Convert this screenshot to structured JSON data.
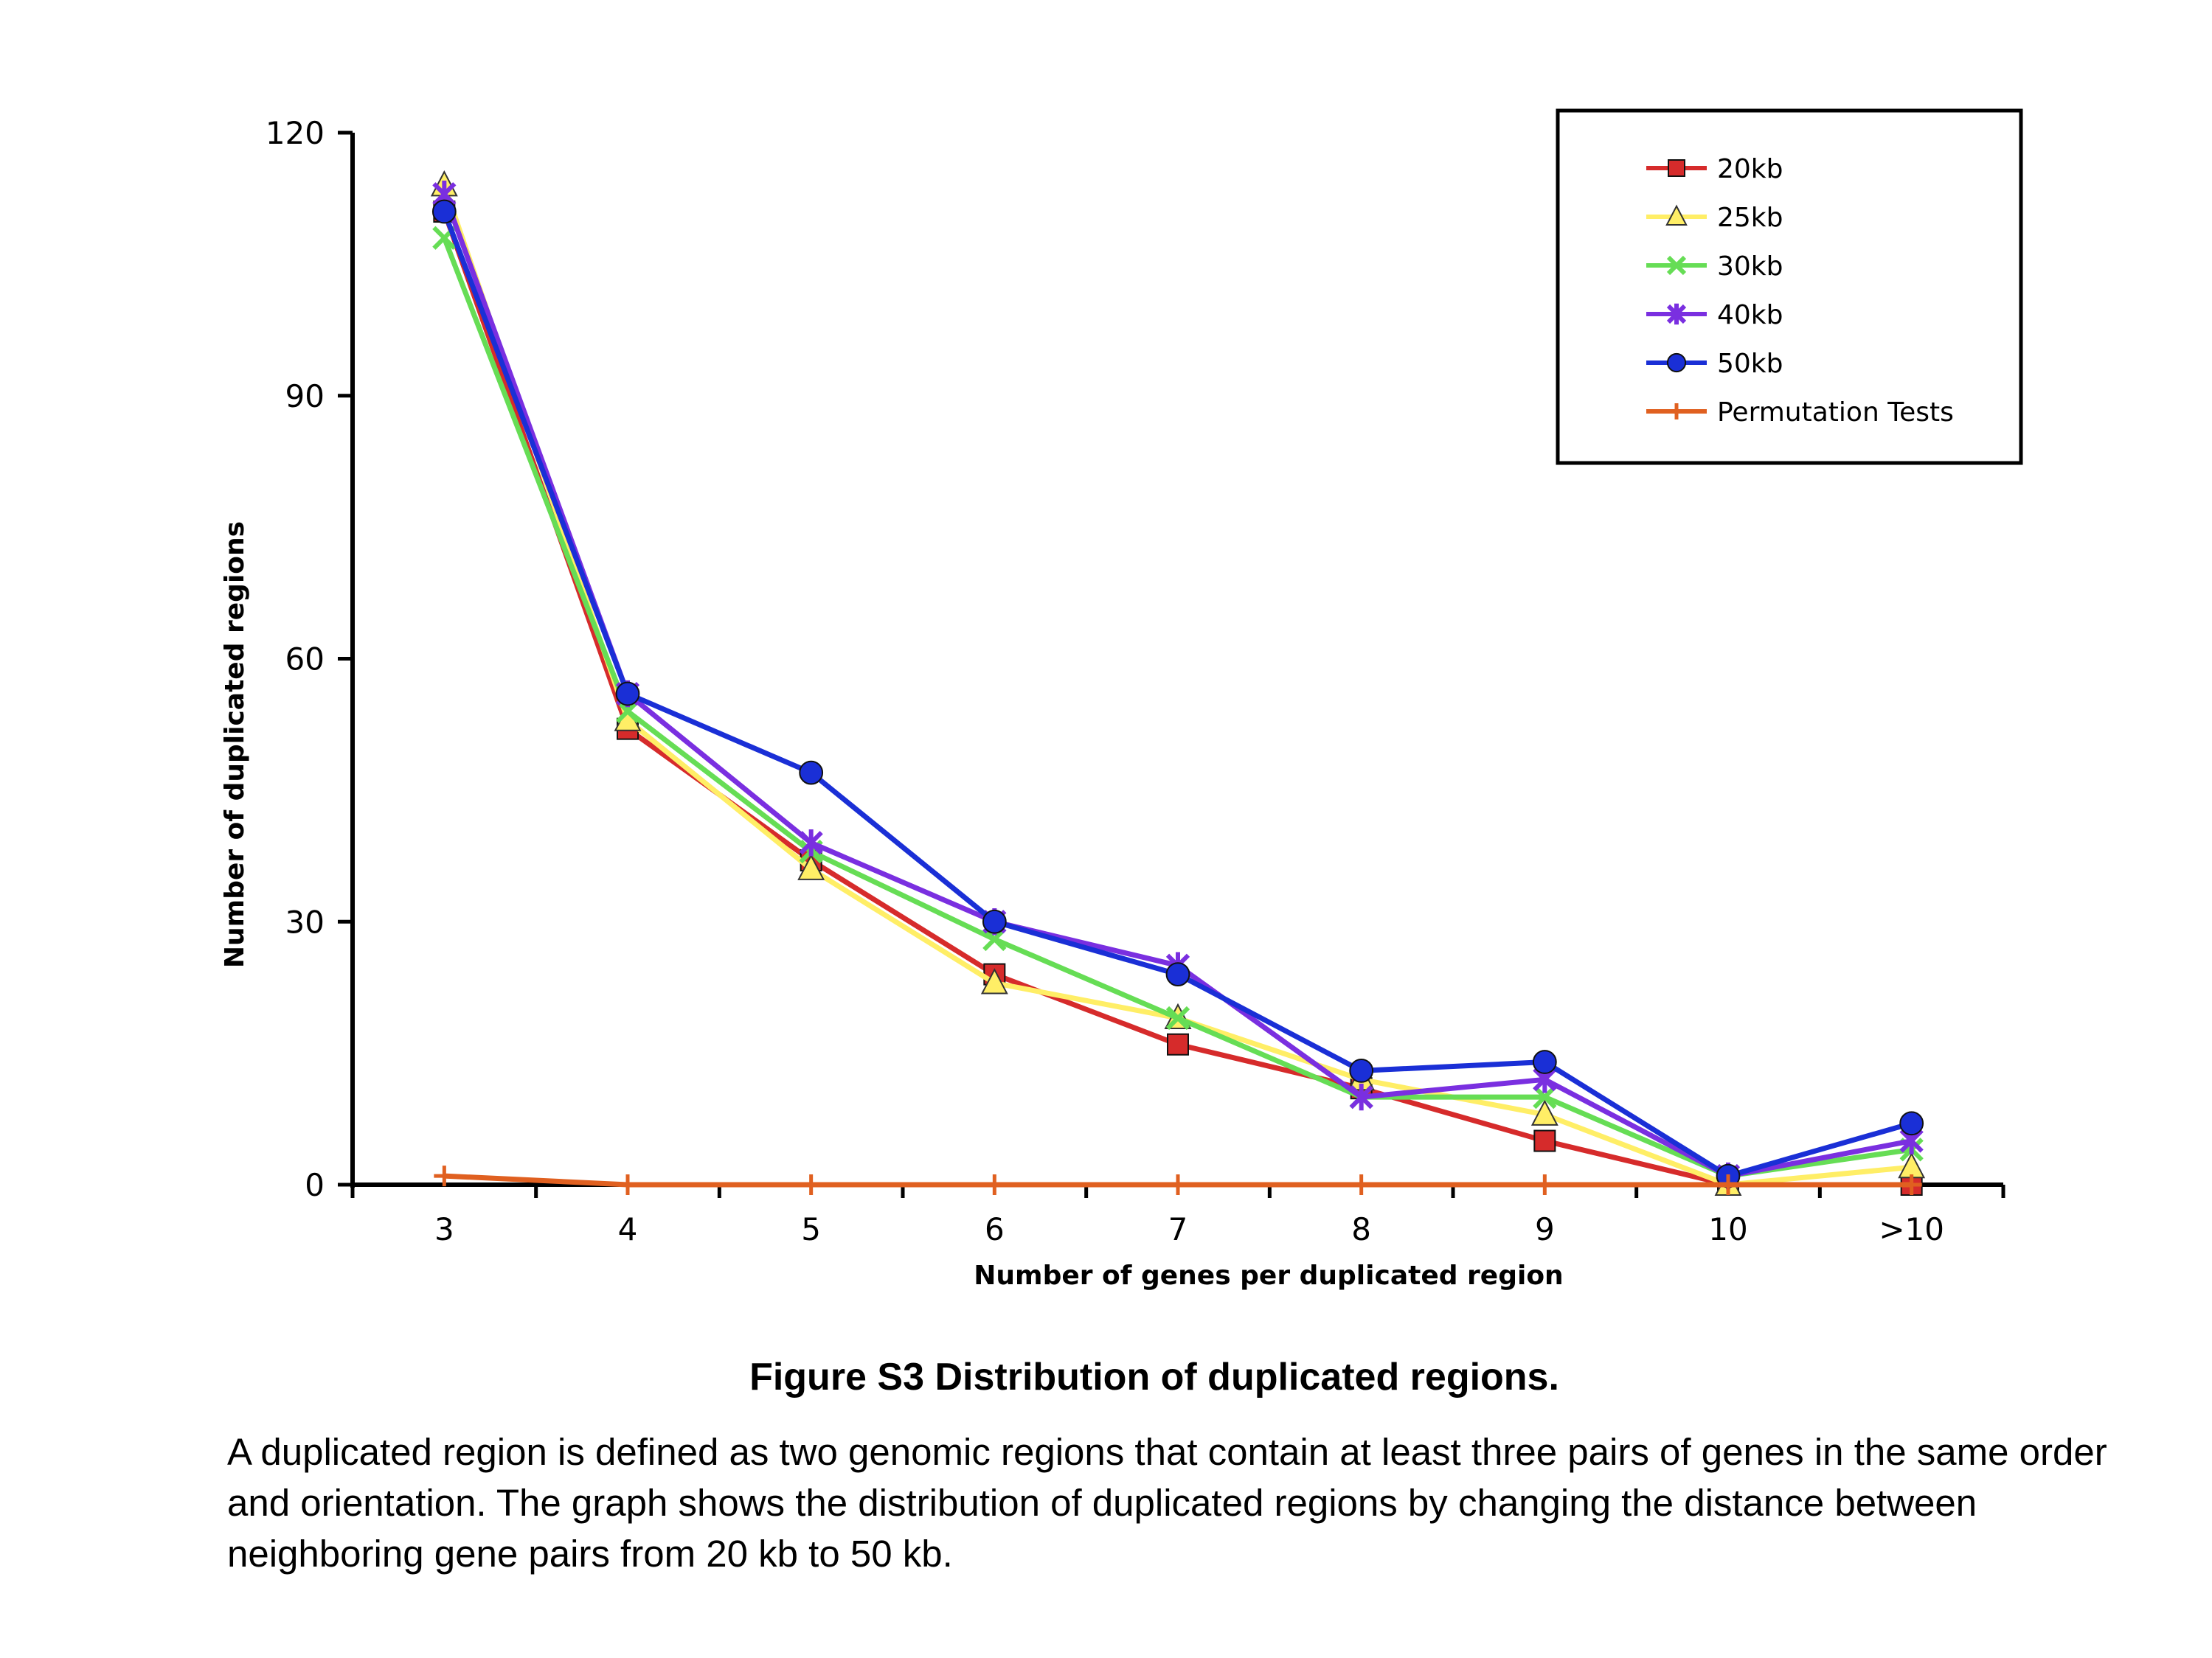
{
  "chart_data": {
    "type": "line",
    "categories": [
      "3",
      "4",
      "5",
      "6",
      "7",
      "8",
      "9",
      "10",
      ">10"
    ],
    "xlabel": "Number of genes per duplicated region",
    "ylabel": "Number of duplicated regions",
    "ylim": [
      0,
      120
    ],
    "yticks": [
      "0",
      "30",
      "60",
      "90",
      "120"
    ],
    "legend_position": "top-right",
    "grid": false,
    "series": [
      {
        "name": "20kb",
        "color": "#d62b2b",
        "marker": "square",
        "values": [
          111,
          52,
          37,
          24,
          16,
          11,
          5,
          0,
          0
        ]
      },
      {
        "name": "25kb",
        "color": "#ffee66",
        "marker": "triangle",
        "values": [
          114,
          53,
          36,
          23,
          19,
          12,
          8,
          0,
          2
        ]
      },
      {
        "name": "30kb",
        "color": "#66dd55",
        "marker": "x",
        "values": [
          108,
          54,
          38,
          28,
          19,
          10,
          10,
          1,
          4
        ]
      },
      {
        "name": "40kb",
        "color": "#7a2fe0",
        "marker": "star",
        "values": [
          113,
          56,
          39,
          30,
          25,
          10,
          12,
          1,
          5
        ]
      },
      {
        "name": "50kb",
        "color": "#1a2fd6",
        "marker": "circle",
        "values": [
          111,
          56,
          47,
          30,
          24,
          13,
          14,
          1,
          7
        ]
      },
      {
        "name": "Permutation Tests",
        "color": "#e06020",
        "marker": "plus",
        "values": [
          1,
          0,
          0,
          0,
          0,
          0,
          0,
          0,
          0
        ]
      }
    ]
  },
  "caption": {
    "title": "Figure S3 Distribution of duplicated regions.",
    "body": " A duplicated region is defined as two genomic regions that contain at least three pairs of genes in the same order and orientation. The graph shows the distribution of duplicated regions by changing the distance between neighboring gene pairs from 20 kb to 50 kb."
  }
}
